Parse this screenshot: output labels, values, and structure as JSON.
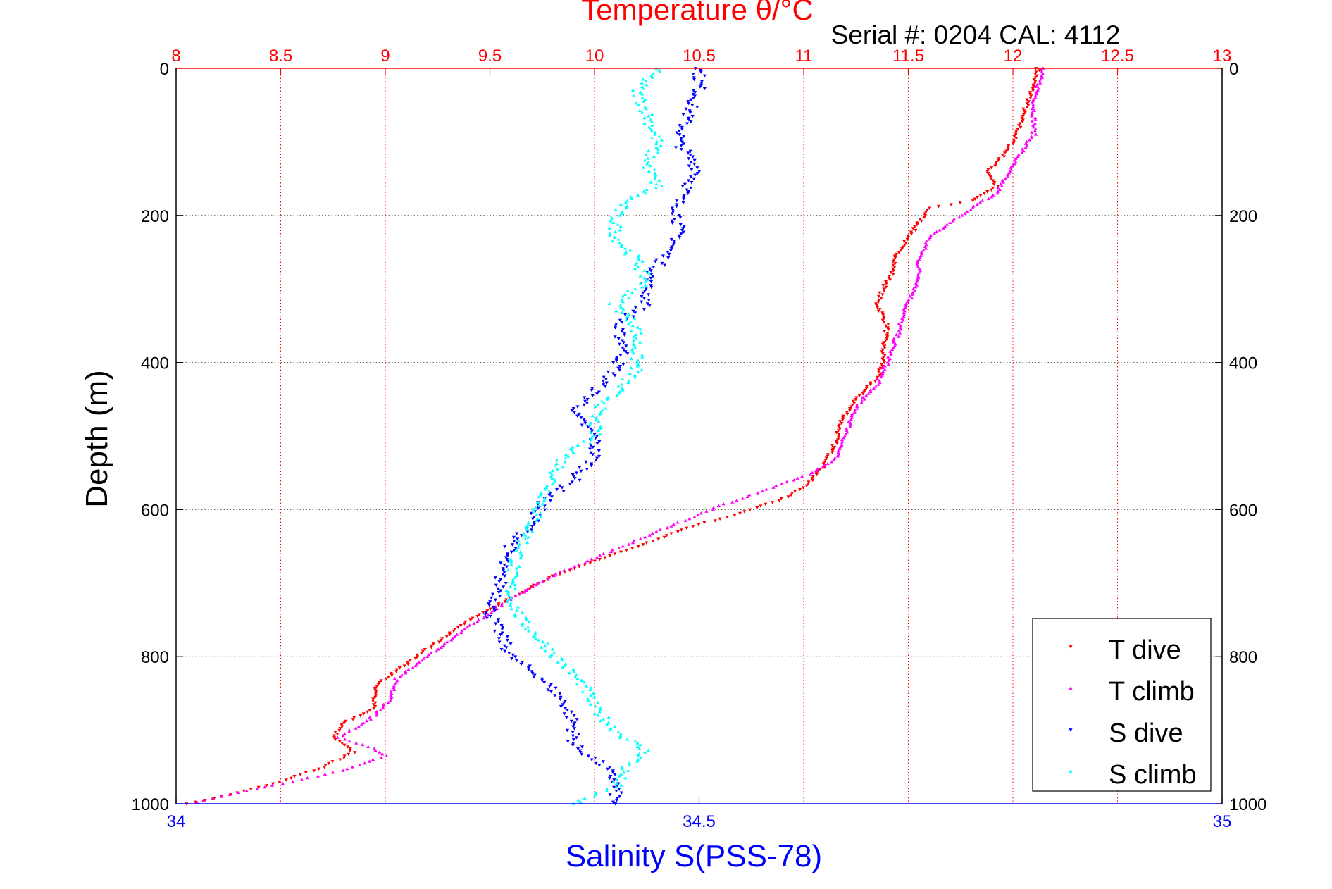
{
  "colors": {
    "temperature_axis": "#ff0000",
    "salinity_axis": "#0000ff",
    "grid": "#555555",
    "t_dive": "#ff0000",
    "t_climb": "#ff00ff",
    "s_dive": "#0000ff",
    "s_climb": "#00ffff"
  },
  "chart_data": {
    "type": "scatter",
    "title": "Temperature θ/°C",
    "subtitle": "Serial #: 0204  CAL: 4112",
    "ylabel": "Depth (m)",
    "xlabel_bottom": "Salinity S(PSS-78)",
    "xlabel_top": "Temperature θ/°C",
    "y_reversed": true,
    "ylim": [
      0,
      1000
    ],
    "y_ticks": [
      "0",
      "200",
      "400",
      "600",
      "800",
      "1000"
    ],
    "x_top_lim": [
      8,
      13
    ],
    "x_top_ticks": [
      "8",
      "8.5",
      "9",
      "9.5",
      "10",
      "10.5",
      "11",
      "11.5",
      "12",
      "12.5",
      "13"
    ],
    "x_bottom_lim": [
      34,
      35
    ],
    "x_bottom_ticks": [
      "34",
      "34.5",
      "35"
    ],
    "grid": true,
    "legend_position": "bottom-right",
    "legend": [
      "T dive",
      "T climb",
      "S dive",
      "S climb"
    ],
    "series": [
      {
        "name": "T dive",
        "axis": "temperature",
        "marker": "down-triangle",
        "points": [
          [
            12.12,
            0
          ],
          [
            12.1,
            20
          ],
          [
            12.08,
            40
          ],
          [
            12.05,
            60
          ],
          [
            12.03,
            80
          ],
          [
            12.0,
            100
          ],
          [
            11.95,
            120
          ],
          [
            11.88,
            140
          ],
          [
            11.92,
            160
          ],
          [
            11.8,
            180
          ],
          [
            11.6,
            190
          ],
          [
            11.55,
            210
          ],
          [
            11.5,
            230
          ],
          [
            11.45,
            250
          ],
          [
            11.42,
            280
          ],
          [
            11.38,
            300
          ],
          [
            11.35,
            320
          ],
          [
            11.4,
            350
          ],
          [
            11.38,
            380
          ],
          [
            11.38,
            400
          ],
          [
            11.35,
            420
          ],
          [
            11.25,
            450
          ],
          [
            11.18,
            480
          ],
          [
            11.15,
            510
          ],
          [
            11.1,
            540
          ],
          [
            11.0,
            570
          ],
          [
            10.9,
            585
          ],
          [
            10.7,
            605
          ],
          [
            10.5,
            620
          ],
          [
            10.3,
            640
          ],
          [
            10.05,
            665
          ],
          [
            9.8,
            690
          ],
          [
            9.6,
            720
          ],
          [
            9.4,
            750
          ],
          [
            9.2,
            790
          ],
          [
            9.1,
            810
          ],
          [
            8.95,
            840
          ],
          [
            8.95,
            870
          ],
          [
            8.8,
            890
          ],
          [
            8.75,
            910
          ],
          [
            8.85,
            930
          ],
          [
            8.7,
            950
          ],
          [
            8.5,
            970
          ],
          [
            8.3,
            985
          ],
          [
            8.05,
            1000
          ]
        ]
      },
      {
        "name": "T climb",
        "axis": "temperature",
        "marker": "up-triangle",
        "points": [
          [
            12.14,
            0
          ],
          [
            12.1,
            50
          ],
          [
            12.1,
            90
          ],
          [
            12.0,
            130
          ],
          [
            11.92,
            170
          ],
          [
            11.75,
            200
          ],
          [
            11.6,
            230
          ],
          [
            11.55,
            260
          ],
          [
            11.55,
            290
          ],
          [
            11.48,
            330
          ],
          [
            11.45,
            360
          ],
          [
            11.4,
            400
          ],
          [
            11.35,
            430
          ],
          [
            11.25,
            460
          ],
          [
            11.2,
            500
          ],
          [
            11.15,
            530
          ],
          [
            11.05,
            550
          ],
          [
            10.85,
            570
          ],
          [
            10.6,
            595
          ],
          [
            10.3,
            630
          ],
          [
            10.05,
            660
          ],
          [
            9.8,
            690
          ],
          [
            9.55,
            730
          ],
          [
            9.35,
            770
          ],
          [
            9.2,
            800
          ],
          [
            9.05,
            830
          ],
          [
            9.02,
            860
          ],
          [
            8.95,
            880
          ],
          [
            8.78,
            910
          ],
          [
            8.95,
            925
          ],
          [
            9.0,
            935
          ],
          [
            8.8,
            955
          ],
          [
            8.55,
            970
          ],
          [
            8.3,
            985
          ],
          [
            8.1,
            998
          ]
        ]
      },
      {
        "name": "S dive",
        "axis": "salinity",
        "marker": "down-triangle",
        "points": [
          [
            34.5,
            0
          ],
          [
            34.5,
            30
          ],
          [
            34.49,
            60
          ],
          [
            34.48,
            100
          ],
          [
            34.5,
            140
          ],
          [
            34.48,
            180
          ],
          [
            34.48,
            230
          ],
          [
            34.46,
            270
          ],
          [
            34.45,
            290
          ],
          [
            34.45,
            320
          ],
          [
            34.42,
            350
          ],
          [
            34.43,
            380
          ],
          [
            34.42,
            410
          ],
          [
            34.4,
            440
          ],
          [
            34.38,
            470
          ],
          [
            34.4,
            500
          ],
          [
            34.4,
            530
          ],
          [
            34.38,
            560
          ],
          [
            34.35,
            590
          ],
          [
            34.34,
            620
          ],
          [
            34.32,
            650
          ],
          [
            34.31,
            680
          ],
          [
            34.31,
            710
          ],
          [
            34.3,
            740
          ],
          [
            34.31,
            770
          ],
          [
            34.32,
            800
          ],
          [
            34.35,
            830
          ],
          [
            34.37,
            860
          ],
          [
            34.38,
            890
          ],
          [
            34.38,
            920
          ],
          [
            34.41,
            950
          ],
          [
            34.42,
            970
          ],
          [
            34.42,
            1000
          ]
        ]
      },
      {
        "name": "S climb",
        "axis": "salinity",
        "marker": "up-triangle",
        "points": [
          [
            34.46,
            0
          ],
          [
            34.44,
            30
          ],
          [
            34.45,
            60
          ],
          [
            34.46,
            100
          ],
          [
            34.45,
            130
          ],
          [
            34.46,
            160
          ],
          [
            34.43,
            180
          ],
          [
            34.42,
            200
          ],
          [
            34.42,
            230
          ],
          [
            34.44,
            260
          ],
          [
            34.45,
            290
          ],
          [
            34.42,
            320
          ],
          [
            34.44,
            350
          ],
          [
            34.44,
            380
          ],
          [
            34.44,
            410
          ],
          [
            34.42,
            440
          ],
          [
            34.4,
            470
          ],
          [
            34.4,
            500
          ],
          [
            34.37,
            530
          ],
          [
            34.36,
            560
          ],
          [
            34.35,
            590
          ],
          [
            34.34,
            620
          ],
          [
            34.33,
            650
          ],
          [
            34.32,
            690
          ],
          [
            34.32,
            720
          ],
          [
            34.33,
            750
          ],
          [
            34.35,
            780
          ],
          [
            34.37,
            810
          ],
          [
            34.39,
            840
          ],
          [
            34.4,
            870
          ],
          [
            34.42,
            900
          ],
          [
            34.45,
            930
          ],
          [
            34.43,
            950
          ],
          [
            34.42,
            975
          ],
          [
            34.38,
            1000
          ]
        ]
      }
    ]
  }
}
